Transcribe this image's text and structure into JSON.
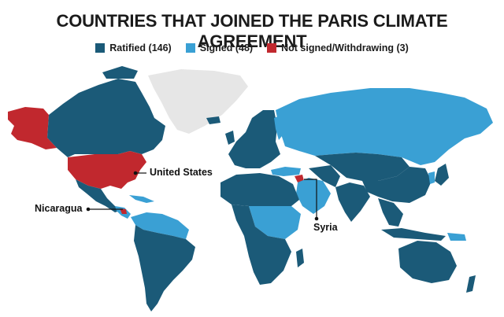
{
  "title": "COUNTRIES THAT JOINED THE PARIS CLIMATE AGREEMENT",
  "legend": [
    {
      "label": "Ratified (146)",
      "color": "#1b5a78"
    },
    {
      "label": "Signed (48)",
      "color": "#3aa0d4"
    },
    {
      "label": "Not signed/Withdrawing (3)",
      "color": "#c1282e"
    }
  ],
  "colors": {
    "ratified": "#1b5a78",
    "signed": "#3aa0d4",
    "not_signed": "#c1282e",
    "no_data": "#e6e6e6"
  },
  "callouts": {
    "united_states": "United States",
    "nicaragua": "Nicaragua",
    "syria": "Syria"
  }
}
